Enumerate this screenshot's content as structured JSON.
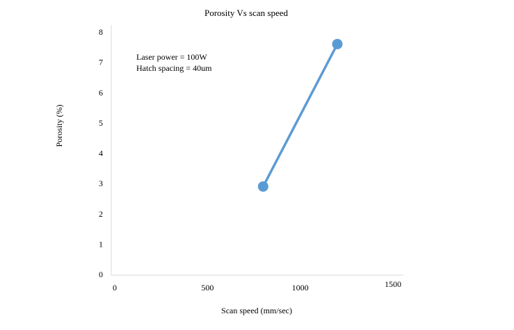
{
  "chart_data": {
    "type": "line",
    "title": "Porosity  Vs scan speed",
    "xlabel": "Scan speed (mm/sec)",
    "ylabel": "Porosity (%)",
    "xlim": [
      0,
      1500
    ],
    "ylim": [
      0,
      8
    ],
    "x_ticks": [
      {
        "value": 0,
        "label": "0"
      },
      {
        "value": 500,
        "label": "500"
      },
      {
        "value": 1000,
        "label": "1000"
      },
      {
        "value": 1500,
        "label": "1500"
      }
    ],
    "y_ticks": [
      {
        "value": 0,
        "label": "0"
      },
      {
        "value": 1,
        "label": "1"
      },
      {
        "value": 2,
        "label": "2"
      },
      {
        "value": 3,
        "label": "3"
      },
      {
        "value": 4,
        "label": "4"
      },
      {
        "value": 5,
        "label": "5"
      },
      {
        "value": 6,
        "label": "6"
      },
      {
        "value": 7,
        "label": "7"
      },
      {
        "value": 8,
        "label": "8"
      }
    ],
    "grid": false,
    "series": [
      {
        "x": [
          800,
          1200
        ],
        "y": [
          2.9,
          7.6
        ],
        "color": "#5b9bd5"
      }
    ],
    "annotations": [
      {
        "text": "Laser power = 100W"
      },
      {
        "text": "Hatch spacing = 40um"
      }
    ]
  }
}
